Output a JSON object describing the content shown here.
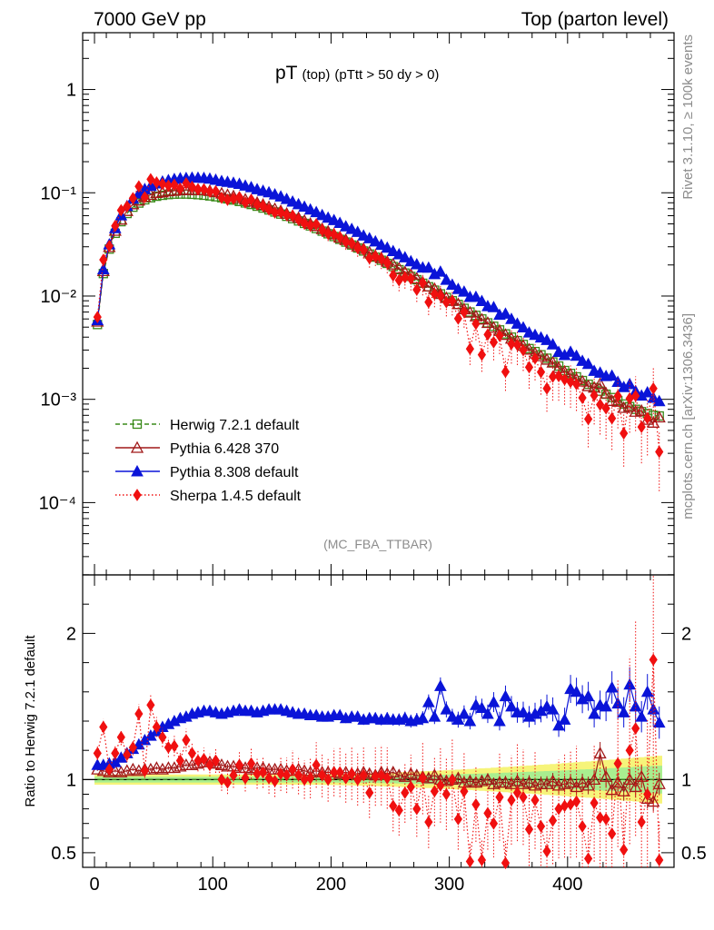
{
  "header": {
    "left": "7000 GeV pp",
    "right": "Top (parton level)"
  },
  "side_labels": {
    "rivet": "Rivet 3.1.10, ≥ 100k events",
    "mcplots": "mcplots.cern.ch [arXiv:1306.3436]"
  },
  "chart_data": {
    "type": "line",
    "title_main": "pT",
    "title_sub1": "(top)",
    "title_sub2": "(pTtt > 50 dy > 0)",
    "analysis_tag": "(MC_FBA_TTBAR)",
    "xlabel": "",
    "ylabel_ratio": "Ratio to Herwig 7.2.1 default",
    "xlim": [
      -10,
      490
    ],
    "ylim_main_log10": [
      -4.7,
      0.55
    ],
    "ylim_ratio": [
      0.4,
      2.4
    ],
    "x_ticks": [
      "0",
      "100",
      "200",
      "300",
      "400"
    ],
    "x_tick_values": [
      0,
      100,
      200,
      300,
      400
    ],
    "main_y_ticks": [
      {
        "label": "1",
        "value": 1
      },
      {
        "label": "10⁻¹",
        "value": 0.1
      },
      {
        "label": "10⁻²",
        "value": 0.01
      },
      {
        "label": "10⁻³",
        "value": 0.001
      },
      {
        "label": "10⁻⁴",
        "value": 0.0001
      }
    ],
    "ratio_y_ticks": [
      {
        "label": "2",
        "value": 2
      },
      {
        "label": "1",
        "value": 1
      },
      {
        "label": "0.5",
        "value": 0.5
      }
    ],
    "x": [
      2.5,
      7.5,
      12.5,
      17.5,
      22.5,
      27.5,
      32.5,
      37.5,
      42.5,
      47.5,
      52.5,
      57.5,
      62.5,
      67.5,
      72.5,
      77.5,
      82.5,
      87.5,
      92.5,
      97.5,
      102.5,
      107.5,
      112.5,
      117.5,
      122.5,
      127.5,
      132.5,
      137.5,
      142.5,
      147.5,
      152.5,
      157.5,
      162.5,
      167.5,
      172.5,
      177.5,
      182.5,
      187.5,
      192.5,
      197.5,
      202.5,
      207.5,
      212.5,
      217.5,
      222.5,
      227.5,
      232.5,
      237.5,
      242.5,
      247.5,
      252.5,
      257.5,
      262.5,
      267.5,
      272.5,
      277.5,
      282.5,
      287.5,
      292.5,
      297.5,
      302.5,
      307.5,
      312.5,
      317.5,
      322.5,
      327.5,
      332.5,
      337.5,
      342.5,
      347.5,
      352.5,
      357.5,
      362.5,
      367.5,
      372.5,
      377.5,
      382.5,
      387.5,
      392.5,
      397.5,
      402.5,
      407.5,
      412.5,
      417.5,
      422.5,
      427.5,
      432.5,
      437.5,
      442.5,
      447.5,
      452.5,
      457.5,
      462.5,
      467.5,
      472.5,
      477.5
    ],
    "series": [
      {
        "name": "Herwig 7.2.1 default",
        "color": "#3a8a1a",
        "style": "dashed",
        "marker": "open-square",
        "values": [
          0.0053,
          0.0165,
          0.0285,
          0.0405,
          0.0525,
          0.063,
          0.0725,
          0.0795,
          0.0855,
          0.0895,
          0.0925,
          0.0945,
          0.096,
          0.097,
          0.0972,
          0.0972,
          0.0966,
          0.0958,
          0.0946,
          0.0932,
          0.0915,
          0.0895,
          0.0873,
          0.085,
          0.0824,
          0.0797,
          0.077,
          0.0741,
          0.0711,
          0.0682,
          0.0651,
          0.0622,
          0.0592,
          0.0562,
          0.0534,
          0.0505,
          0.0478,
          0.0451,
          0.0425,
          0.0401,
          0.0377,
          0.0354,
          0.0333,
          0.0312,
          0.0292,
          0.0273,
          0.0255,
          0.0238,
          0.0222,
          0.0207,
          0.0193,
          0.018,
          0.0167,
          0.0155,
          0.0144,
          0.0133,
          0.0123,
          0.0114,
          0.0105,
          0.0097,
          0.009,
          0.0083,
          0.0076,
          0.007,
          0.0065,
          0.006,
          0.0055,
          0.0051,
          0.0047,
          0.0043,
          0.004,
          0.0037,
          0.0034,
          0.0031,
          0.0029,
          0.0027,
          0.0025,
          0.0023,
          0.0021,
          0.0019,
          0.00178,
          0.00165,
          0.00152,
          0.0014,
          0.0013,
          0.0012,
          0.00112,
          0.00104,
          0.00097,
          0.0009,
          0.00085,
          0.0008,
          0.00076,
          0.00073,
          0.0007,
          0.00069
        ],
        "ratio": [
          1.0,
          1.0,
          1.0,
          1.0,
          1.0,
          1.0,
          1.0,
          1.0,
          1.0,
          1.0,
          1.0,
          1.0,
          1.0,
          1.0,
          1.0,
          1.0,
          1.0,
          1.0,
          1.0,
          1.0,
          1.0,
          1.0,
          1.0,
          1.0,
          1.0,
          1.0,
          1.0,
          1.0,
          1.0,
          1.0,
          1.0,
          1.0,
          1.0,
          1.0,
          1.0,
          1.0,
          1.0,
          1.0,
          1.0,
          1.0,
          1.0,
          1.0,
          1.0,
          1.0,
          1.0,
          1.0,
          1.0,
          1.0,
          1.0,
          1.0,
          1.0,
          1.0,
          1.0,
          1.0,
          1.0,
          1.0,
          1.0,
          1.0,
          1.0,
          1.0,
          1.0,
          1.0,
          1.0,
          1.0,
          1.0,
          1.0,
          1.0,
          1.0,
          1.0,
          1.0,
          1.0,
          1.0,
          1.0,
          1.0,
          1.0,
          1.0,
          1.0,
          1.0,
          1.0,
          1.0,
          1.0,
          1.0,
          1.0,
          1.0,
          1.0,
          1.0,
          1.0,
          1.0,
          1.0,
          1.0,
          1.0,
          1.0,
          1.0,
          1.0,
          1.0,
          1.0
        ]
      },
      {
        "name": "Pythia 6.428 370",
        "color": "#a01818",
        "style": "solid",
        "marker": "open-triangle",
        "ratio": [
          1.07,
          1.06,
          1.05,
          1.06,
          1.05,
          1.06,
          1.07,
          1.06,
          1.07,
          1.07,
          1.08,
          1.07,
          1.08,
          1.08,
          1.09,
          1.1,
          1.1,
          1.11,
          1.12,
          1.12,
          1.11,
          1.1,
          1.09,
          1.09,
          1.08,
          1.08,
          1.07,
          1.08,
          1.08,
          1.07,
          1.07,
          1.07,
          1.06,
          1.06,
          1.07,
          1.06,
          1.05,
          1.06,
          1.05,
          1.05,
          1.05,
          1.04,
          1.05,
          1.04,
          1.04,
          1.05,
          1.04,
          1.03,
          1.05,
          1.04,
          1.05,
          1.03,
          1.02,
          1.04,
          1.03,
          1.02,
          1.01,
          1.03,
          1.0,
          0.99,
          1.0,
          1.01,
          0.98,
          0.99,
          0.98,
          0.99,
          1.0,
          0.97,
          0.98,
          0.98,
          0.97,
          0.99,
          0.97,
          0.98,
          0.96,
          0.97,
          0.97,
          0.99,
          0.96,
          0.97,
          0.98,
          0.95,
          0.98,
          0.96,
          1.0,
          1.18,
          1.02,
          0.93,
          0.98,
          0.92,
          1.0,
          0.95,
          1.02,
          0.87,
          0.85,
          0.97
        ]
      },
      {
        "name": "Pythia 8.308 default",
        "color": "#0a14d8",
        "style": "solid",
        "marker": "filled-triangle",
        "ratio": [
          1.1,
          1.1,
          1.11,
          1.12,
          1.15,
          1.18,
          1.21,
          1.24,
          1.27,
          1.3,
          1.33,
          1.36,
          1.38,
          1.4,
          1.42,
          1.43,
          1.45,
          1.46,
          1.47,
          1.47,
          1.46,
          1.45,
          1.46,
          1.47,
          1.48,
          1.47,
          1.47,
          1.46,
          1.47,
          1.48,
          1.48,
          1.48,
          1.47,
          1.46,
          1.45,
          1.45,
          1.44,
          1.44,
          1.43,
          1.43,
          1.44,
          1.44,
          1.42,
          1.43,
          1.43,
          1.41,
          1.42,
          1.42,
          1.41,
          1.42,
          1.41,
          1.41,
          1.42,
          1.4,
          1.41,
          1.42,
          1.53,
          1.43,
          1.64,
          1.48,
          1.43,
          1.41,
          1.45,
          1.4,
          1.51,
          1.49,
          1.45,
          1.53,
          1.4,
          1.57,
          1.5,
          1.46,
          1.46,
          1.43,
          1.45,
          1.47,
          1.5,
          1.48,
          1.37,
          1.41,
          1.62,
          1.6,
          1.55,
          1.57,
          1.45,
          1.51,
          1.5,
          1.63,
          1.52,
          1.46,
          1.65,
          1.5,
          1.43,
          1.6,
          1.48,
          1.39
        ]
      },
      {
        "name": "Sherpa 1.4.5 default",
        "color": "#f01010",
        "style": "dotted",
        "marker": "filled-diamond",
        "ratio": [
          1.18,
          1.36,
          1.07,
          1.18,
          1.29,
          1.17,
          1.22,
          1.45,
          1.06,
          1.51,
          1.36,
          1.29,
          1.22,
          1.23,
          1.13,
          1.27,
          1.18,
          1.13,
          1.14,
          1.1,
          1.13,
          1.0,
          0.98,
          1.03,
          1.1,
          1.01,
          1.11,
          1.04,
          1.05,
          1.01,
          0.99,
          1.04,
          1.03,
          1.07,
          1.03,
          1.0,
          1.01,
          1.1,
          1.03,
          1.0,
          1.05,
          1.05,
          1.01,
          1.04,
          1.0,
          1.03,
          0.91,
          1.02,
          1.03,
          1.01,
          0.82,
          0.79,
          0.91,
          0.95,
          0.8,
          1.01,
          0.71,
          0.92,
          0.96,
          0.9,
          1.0,
          0.73,
          0.92,
          0.44,
          0.83,
          0.45,
          0.77,
          0.7,
          0.88,
          0.43,
          0.86,
          0.91,
          0.88,
          0.66,
          0.86,
          0.68,
          0.51,
          0.72,
          0.8,
          0.82,
          0.83,
          0.85,
          0.68,
          0.46,
          0.84,
          0.74,
          0.73,
          0.63,
          1.11,
          0.52,
          1.2,
          1.35,
          0.71,
          0.9,
          1.82,
          0.45
        ]
      }
    ]
  }
}
